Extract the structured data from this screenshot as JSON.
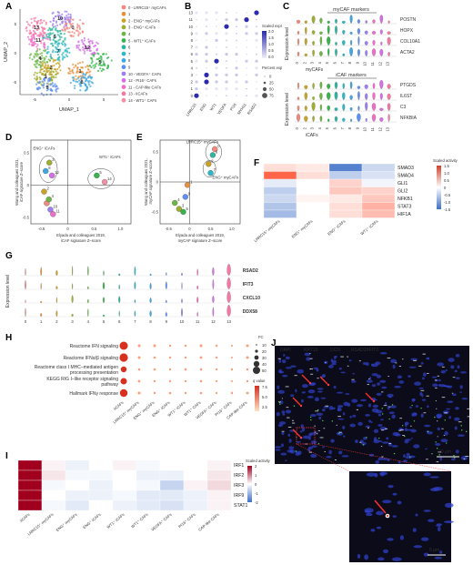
{
  "panels": {
    "A": {
      "letter": "A",
      "xlabel": "UMAP_1",
      "ylabel": "UMAP_2",
      "xticks": [
        "-5",
        "0",
        "5"
      ],
      "yticks": [
        "-5",
        "0",
        "5"
      ],
      "legend": [
        {
          "id": "0",
          "label": "LRRC15⁺ myCAFs",
          "color": "#f08a80"
        },
        {
          "id": "1",
          "label": "",
          "color": "#e7913f"
        },
        {
          "id": "2",
          "label": "ENG⁺ myCAFs",
          "color": "#c9a227"
        },
        {
          "id": "3",
          "label": "ENG⁺ iCAFs",
          "color": "#9fae2e"
        },
        {
          "id": "4",
          "label": "",
          "color": "#6bb644"
        },
        {
          "id": "5",
          "label": "WT1⁺ iCAFs",
          "color": "#37b44b"
        },
        {
          "id": "6",
          "label": "",
          "color": "#2eb5a0"
        },
        {
          "id": "7",
          "label": "",
          "color": "#2db8c8"
        },
        {
          "id": "8",
          "label": "",
          "color": "#3ea7e0"
        },
        {
          "id": "9",
          "label": "",
          "color": "#5f8ff0"
        },
        {
          "id": "10",
          "label": "VEGFA⁺ CAFs",
          "color": "#9d7ff0"
        },
        {
          "id": "12",
          "label": "PI16⁺ CAFs",
          "color": "#d56fe6"
        },
        {
          "id": "11",
          "label": "CAP-like CAFs",
          "color": "#ee6fc6"
        },
        {
          "id": "13",
          "label": "iICAFs",
          "color": "#f27aa0"
        },
        {
          "id": "14",
          "label": "WT1⁺ CAFs",
          "color": "#f08fa6"
        }
      ],
      "umap_cluster_labels": [
        "0",
        "1",
        "2",
        "3",
        "4",
        "5",
        "6",
        "7",
        "8",
        "9",
        "10",
        "11",
        "12",
        "13"
      ]
    },
    "B": {
      "letter": "B",
      "genes": [
        "LRRC15",
        "ENG",
        "WT1",
        "VEGFA",
        "PI16",
        "MYH11",
        "RSAD2"
      ],
      "clusters": [
        "13",
        "11",
        "10",
        "9",
        "8",
        "7",
        "6",
        "5",
        "4",
        "3",
        "2",
        "1",
        "0"
      ],
      "legend_title_1": "Scaled expression",
      "legend_ticks_1": [
        "2.0",
        "1.5",
        "1.0",
        "0.5",
        "0.0"
      ],
      "legend_title_2": "Percent expressed",
      "legend_ticks_2": [
        "0",
        "25",
        "50",
        "75"
      ]
    },
    "C": {
      "letter": "C",
      "top_title": "myCAF markers",
      "bottom_title": "iCAF markers",
      "top_genes": [
        "POSTN",
        "HOPX",
        "COL10A1",
        "ACTA2"
      ],
      "bottom_genes": [
        "PTGDS",
        "IL6ST",
        "C3",
        "NFKBIA"
      ],
      "ylabel": "Expression level",
      "top_xlabel": "myCAFs",
      "bottom_xlabel": "iCAFs",
      "clusters": [
        "0",
        "2",
        "3",
        "4",
        "5",
        "6",
        "7",
        "8",
        "9",
        "10",
        "11",
        "12",
        "13"
      ]
    },
    "D": {
      "letter": "D",
      "ylabel_1": "Wang and colleagues 2021,",
      "ylabel_2": "iCAF signature Z–score",
      "xlabel_1": "Elyada and colleagues 2019,",
      "xlabel_2": "iCAF signature Z–score",
      "xticks": [
        "-0.5",
        "0",
        "0.5",
        "1.0"
      ],
      "yticks": [
        "-0.5",
        "0",
        "0.5"
      ],
      "group1": "ENG⁺ iCAFs",
      "group2": "WT1⁺ iCAFs"
    },
    "E": {
      "letter": "E",
      "ylabel_1": "Wang and colleagues 2021,",
      "ylabel_2": "myCAF signature Z–score",
      "xlabel_1": "Elyada and colleagues 2019,",
      "xlabel_2": "myCAF signature Z–score",
      "xticks": [
        "-0.5",
        "0",
        "0.5",
        "1.0"
      ],
      "yticks": [
        "-0.5",
        "0",
        "0.5"
      ],
      "group1": "LRRC15⁺ myCAFs",
      "group2": "ENG⁺ myCAFs"
    },
    "F": {
      "letter": "F",
      "legend_title": "Scaled activity",
      "legend_ticks": [
        "1.5",
        "1.0",
        "0.5",
        "0",
        "-0.5",
        "-1.0",
        "-1.5"
      ],
      "rows": [
        "SMAD3",
        "SMAD4",
        "GLI1",
        "GLI2",
        "NFKB1",
        "STAT3",
        "HIF1A"
      ],
      "cols": [
        "LRRC15⁺ myCAFs",
        "ENG⁺ myCAFs",
        "ENG⁺ iCAFs",
        "WT1⁺ iCAFs"
      ]
    },
    "G": {
      "letter": "G",
      "ylabel": "Expression level",
      "genes": [
        "RSAD2",
        "IFIT3",
        "CXCL10",
        "DDX58"
      ],
      "clusters": [
        "0",
        "1",
        "2",
        "3",
        "4",
        "5",
        "6",
        "7",
        "8",
        "9",
        "10",
        "11",
        "12",
        "13"
      ]
    },
    "H": {
      "letter": "H",
      "terms": [
        "Reactome IFN signaling",
        "Reactome IFNα/β signaling",
        "Reactome class I MHC–mediated antigen processing presentation",
        "KEGG RIG I–like receptor signaling pathway",
        "Hallmark IFNγ response"
      ],
      "cols": [
        "iICAFs",
        "LRRC15⁺ myCAFs",
        "ENG⁺ myCAFs",
        "ENG⁺ iCAFs",
        "WT1⁺ iCAFs",
        "WT1⁺ CAFs",
        "VEGFA⁺ CAFs",
        "PI16⁺ CAFs",
        "CAP-like CAFs"
      ],
      "fc_title": "FC",
      "fc_ticks": [
        "10",
        "20",
        "30",
        "40",
        "50"
      ],
      "q_title": "q value",
      "q_ticks": [
        "7.5",
        "5.0",
        "2.5"
      ]
    },
    "I": {
      "letter": "I",
      "rows": [
        "IRF1",
        "IRF2",
        "IRF3",
        "IRF9",
        "STAT1"
      ],
      "cols": [
        "iICAFs",
        "LRRC15⁺ myCAFs",
        "ENG⁺ myCAFs",
        "ENG⁺ iCAFs",
        "WT1⁺ iCAFs",
        "WT1⁺ CAFs",
        "VEGFA⁺ CAFs",
        "PI16⁺ CAFs",
        "CAP-like CAFs"
      ],
      "legend_title": "Scaled activity",
      "legend_ticks": [
        "2",
        "1",
        "0",
        "-1",
        "-2"
      ]
    },
    "J": {
      "letter": "J",
      "channels": [
        {
          "label": "DAPI",
          "color": "#4a6cff"
        },
        {
          "label": "KRT19",
          "color": "#4bd14b"
        },
        {
          "label": "DCN",
          "color": "#ffffff"
        },
        {
          "label": "RSAD2/IFIT3",
          "color": "#ff3b3b"
        }
      ],
      "scale_main": "20 μm",
      "scale_inset": "5 μm"
    }
  },
  "chart_data": [
    {
      "type": "heatmap",
      "title": "",
      "rows": [
        "SMAD3",
        "SMAD4",
        "GLI1",
        "GLI2",
        "NFKB1",
        "STAT3",
        "HIF1A"
      ],
      "cols": [
        "LRRC15⁺ myCAFs",
        "ENG⁺ myCAFs",
        "ENG⁺ iCAFs",
        "WT1⁺ iCAFs"
      ],
      "values": [
        [
          0.3,
          0.2,
          -1.3,
          -0.4
        ],
        [
          1.4,
          0.3,
          -0.5,
          -0.3
        ],
        [
          -0.2,
          0.0,
          0.4,
          -0.1
        ],
        [
          -0.5,
          0.0,
          0.5,
          0.4
        ],
        [
          -0.4,
          0.1,
          0.2,
          0.5
        ],
        [
          -0.6,
          0.0,
          0.3,
          0.7
        ],
        [
          -0.7,
          0.0,
          0.3,
          0.6
        ]
      ],
      "range": [
        -1.5,
        1.5
      ]
    },
    {
      "type": "heatmap",
      "title": "",
      "rows": [
        "IRF1",
        "IRF2",
        "IRF3",
        "IRF9",
        "STAT1"
      ],
      "cols": [
        "iICAFs",
        "LRRC15⁺ myCAFs",
        "ENG⁺ myCAFs",
        "ENG⁺ iCAFs",
        "WT1⁺ iCAFs",
        "WT1⁺ CAFs",
        "VEGFA⁺ CAFs",
        "PI16⁺ CAFs",
        "CAP-like CAFs"
      ],
      "values": [
        [
          2.0,
          0.1,
          -0.2,
          0.0,
          0.1,
          -0.1,
          0.0,
          0.0,
          0.1
        ],
        [
          2.0,
          0.2,
          -0.1,
          -0.1,
          0.0,
          -0.2,
          -0.2,
          0.0,
          0.2
        ],
        [
          2.0,
          -0.1,
          0.0,
          -0.2,
          0.0,
          -0.1,
          -0.6,
          0.1,
          0.3
        ],
        [
          2.0,
          0.0,
          -0.2,
          -0.2,
          -0.1,
          -0.3,
          -0.3,
          -0.2,
          0.1
        ],
        [
          2.0,
          -0.1,
          -0.3,
          0.0,
          -0.2,
          -0.3,
          -0.4,
          -0.2,
          0.1
        ]
      ],
      "range": [
        -2,
        2
      ]
    },
    {
      "type": "scatter",
      "title": "",
      "xlabel": "Elyada and colleagues 2019, iCAF signature Z–score",
      "ylabel": "Wang and colleagues 2021, iCAF signature Z–score",
      "points": [
        {
          "label": "3",
          "x": -0.35,
          "y": 0.35
        },
        {
          "label": "8",
          "x": -0.42,
          "y": 0.22
        },
        {
          "label": "12",
          "x": -0.3,
          "y": 0.15
        },
        {
          "label": "5",
          "x": 0.55,
          "y": 0.15
        },
        {
          "label": "14",
          "x": 0.7,
          "y": 0.05
        },
        {
          "label": "2",
          "x": -0.45,
          "y": -0.1
        },
        {
          "label": "0",
          "x": -0.4,
          "y": -0.28
        },
        {
          "label": "4",
          "x": -0.36,
          "y": -0.22
        },
        {
          "label": "10",
          "x": -0.33,
          "y": -0.38
        },
        {
          "label": "11",
          "x": -0.28,
          "y": -0.45
        }
      ],
      "xlim": [
        -0.7,
        1.2
      ],
      "ylim": [
        -0.6,
        0.7
      ]
    },
    {
      "type": "scatter",
      "title": "",
      "xlabel": "Elyada and colleagues 2019, myCAF signature Z–score",
      "ylabel": "Wang and colleagues 2021, myCAF signature Z–score",
      "points": [
        {
          "label": "0",
          "x": 0.6,
          "y": 0.55
        },
        {
          "label": "6",
          "x": 0.55,
          "y": 0.45
        },
        {
          "label": "2",
          "x": 0.45,
          "y": 0.3
        },
        {
          "label": "7",
          "x": 0.5,
          "y": 0.15
        },
        {
          "label": "1",
          "x": -0.05,
          "y": -0.05
        },
        {
          "label": "4",
          "x": -0.35,
          "y": -0.35
        },
        {
          "label": "9",
          "x": -0.1,
          "y": -0.25
        },
        {
          "label": "3",
          "x": -0.25,
          "y": -0.45
        },
        {
          "label": "5",
          "x": -0.15,
          "y": -0.5
        }
      ],
      "xlim": [
        -0.7,
        1.2
      ],
      "ylim": [
        -0.7,
        0.7
      ]
    }
  ]
}
